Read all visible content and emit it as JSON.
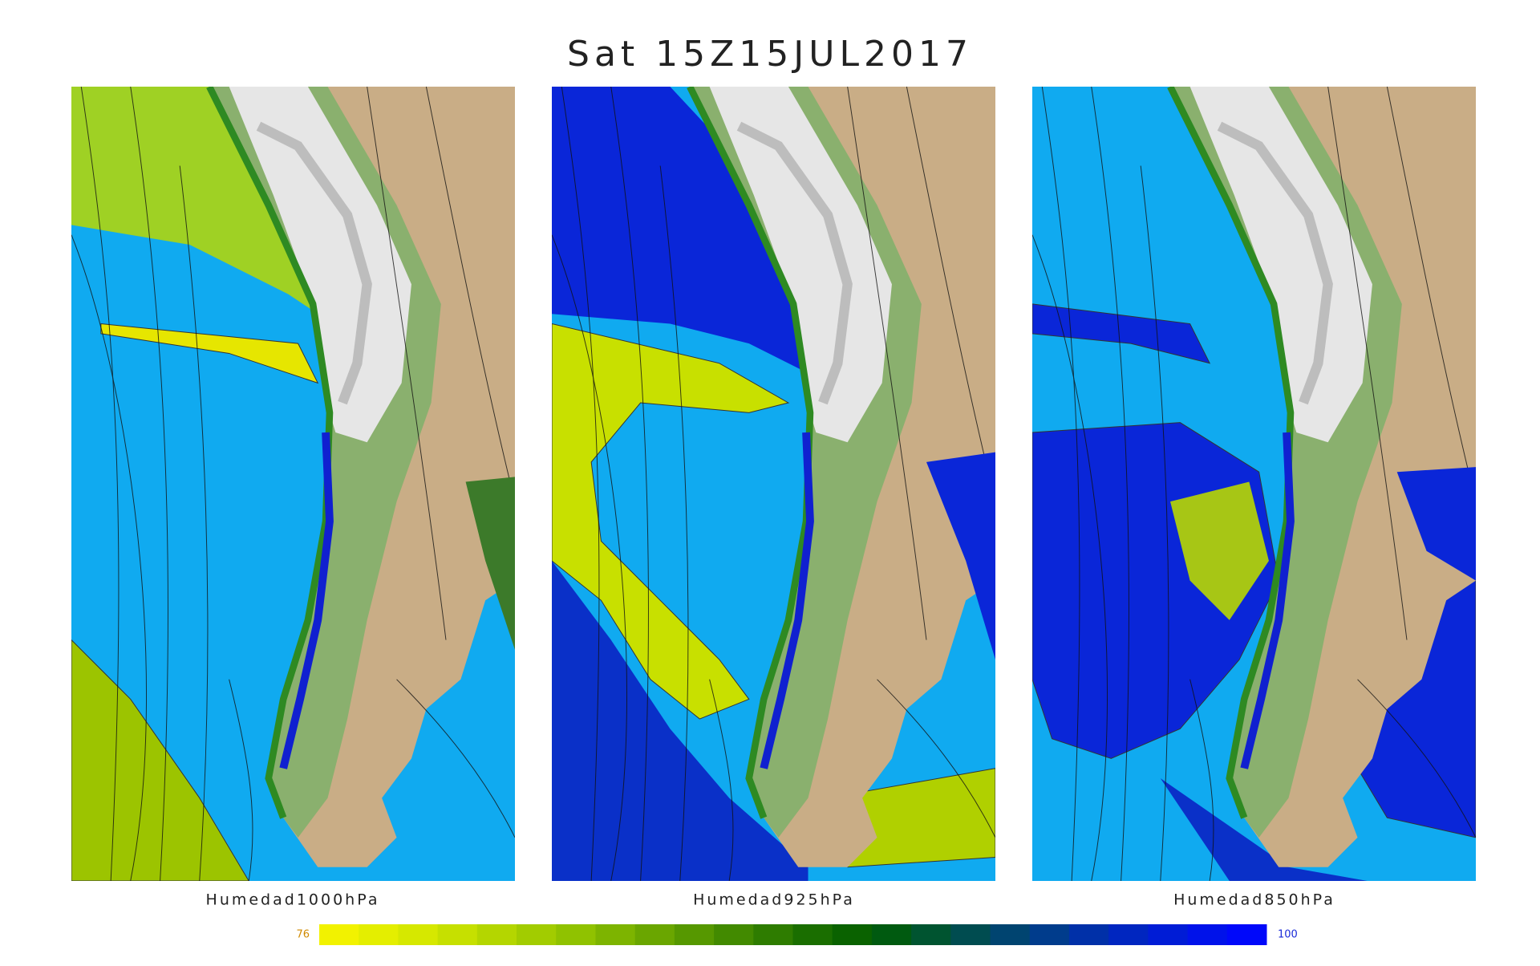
{
  "title": "Sat 15Z15JUL2017",
  "panels": [
    {
      "label": "Humedad1000hPa"
    },
    {
      "label": "Humedad925hPa"
    },
    {
      "label": "Humedad850hPa"
    }
  ],
  "colorbar": {
    "min": 76,
    "max": 100,
    "colors": [
      "#f2f200",
      "#e4ee00",
      "#d6e800",
      "#c6e000",
      "#b4d600",
      "#a2cc00",
      "#90c200",
      "#7db400",
      "#6aa600",
      "#569800",
      "#428a00",
      "#2e7c00",
      "#1a6e00",
      "#0a6200",
      "#005a10",
      "#005430",
      "#004c50",
      "#004470",
      "#003c8c",
      "#0030a8",
      "#0026c0",
      "#001cd6",
      "#0012ea",
      "#0008fa"
    ]
  }
}
